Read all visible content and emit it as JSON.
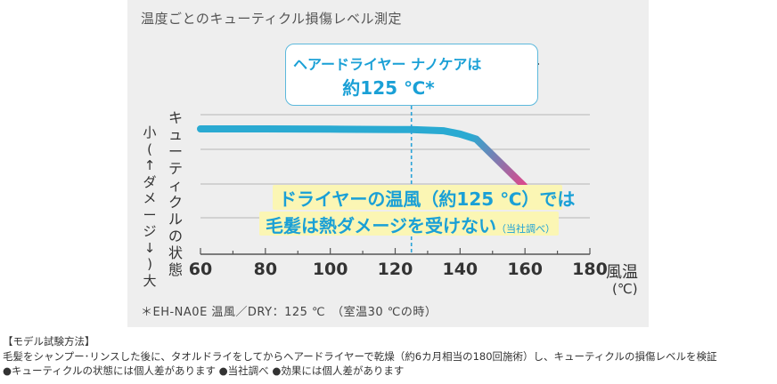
{
  "chart_data": {
    "type": "line",
    "title": "温度ごとのキューティクル損傷レベル測定",
    "ylabel_chars": [
      "キ",
      "ュ",
      "ー",
      "テ",
      "ィ",
      "ク",
      "ル",
      "の",
      "状",
      "態"
    ],
    "y_side_chars": [
      "小",
      "(",
      "↑",
      "ダ",
      "メ",
      "ー",
      "ジ",
      "↓",
      ")",
      "大"
    ],
    "xlabel": "風温",
    "xunit": "(℃)",
    "xlim": [
      60,
      180
    ],
    "x_ticks": [
      60,
      80,
      100,
      120,
      140,
      160,
      180
    ],
    "x_tick_labels": [
      "60",
      "80",
      "100",
      "120",
      "140",
      "160",
      "180"
    ],
    "grid": true,
    "series": [
      {
        "x": [
          60,
          80,
          100,
          120,
          125,
          135,
          140,
          145,
          160
        ],
        "y": [
          10.0,
          10.0,
          9.98,
          9.95,
          9.95,
          9.85,
          9.6,
          9.2,
          5.5
        ],
        "color_start": "#2aaad2",
        "color_end": "#d54c8e"
      }
    ],
    "reference_line": {
      "x": 125,
      "color": "#2aa3d8"
    },
    "callout": {
      "line1": "ヘアードライヤー ナノケアは",
      "line2": "約125 ℃*"
    },
    "claim": {
      "line1": "ドライヤーの温風（約125 ℃）では",
      "line2_main": "毛髪は熱ダメージを受けない",
      "line2_note": "（当社調べ）"
    },
    "footnote": "＊EH-NA0E 温風／DRY：125 ℃　（室温30 ℃の時）"
  },
  "method": {
    "heading": "【モデル試験方法】",
    "line1": "毛髪をシャンプー･リンスした後に、タオルドライをしてからヘアードライヤーで乾燥（約6カ月相当の180回施術）し、キューティクルの損傷レベルを検証",
    "line2": "●キューティクルの状態には個人差があります ●当社調べ ●効果には個人差があります"
  },
  "icons": {
    "dryer": "hair-dryer-icon"
  }
}
